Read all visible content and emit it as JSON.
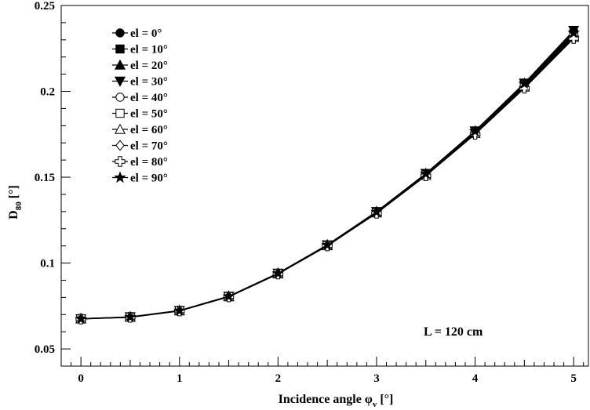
{
  "chart_data": {
    "type": "line",
    "xlabel": "Incidence angle φ",
    "xlabel_sub": "v",
    "xlabel_unit": "[°]",
    "ylabel": "D",
    "ylabel_sub": "80",
    "ylabel_unit": "[°]",
    "xlim": [
      -0.2,
      5.15
    ],
    "ylim": [
      0.04,
      0.25
    ],
    "x_ticks": [
      0,
      1,
      2,
      3,
      4,
      5
    ],
    "x_tick_labels": [
      "0",
      "1",
      "2",
      "3",
      "4",
      "5"
    ],
    "y_ticks": [
      0.05,
      0.1,
      0.15,
      0.2,
      0.25
    ],
    "y_tick_labels": [
      "0.05",
      "0.1",
      "0.15",
      "0.2",
      "0.25"
    ],
    "grid": false,
    "legend_position": "top-left",
    "annotation": "L = 120 cm",
    "x": [
      0,
      0.5,
      1,
      1.5,
      2,
      2.5,
      3,
      3.5,
      4,
      4.5,
      5
    ],
    "series": [
      {
        "name": "el = 0°",
        "marker": "circle-filled",
        "values": [
          0.0675,
          0.0685,
          0.0722,
          0.0805,
          0.0938,
          0.1103,
          0.1295,
          0.1515,
          0.1762,
          0.2035,
          0.2325
        ]
      },
      {
        "name": "el = 10°",
        "marker": "square-filled",
        "values": [
          0.0675,
          0.0686,
          0.0723,
          0.0806,
          0.0939,
          0.1104,
          0.1297,
          0.1518,
          0.1765,
          0.204,
          0.2335
        ]
      },
      {
        "name": "el = 20°",
        "marker": "triangle-up-filled",
        "values": [
          0.0676,
          0.0686,
          0.0723,
          0.0806,
          0.094,
          0.1105,
          0.1298,
          0.152,
          0.1768,
          0.2045,
          0.2345
        ]
      },
      {
        "name": "el = 30°",
        "marker": "triangle-down-filled",
        "values": [
          0.0676,
          0.0687,
          0.0724,
          0.0807,
          0.0941,
          0.1106,
          0.13,
          0.1522,
          0.177,
          0.2048,
          0.2355
        ]
      },
      {
        "name": "el = 40°",
        "marker": "circle-open",
        "values": [
          0.0676,
          0.0686,
          0.0723,
          0.0806,
          0.0939,
          0.1104,
          0.1296,
          0.1518,
          0.1766,
          0.2042,
          0.233
        ]
      },
      {
        "name": "el = 50°",
        "marker": "square-open",
        "values": [
          0.0675,
          0.0685,
          0.0722,
          0.0805,
          0.0938,
          0.1102,
          0.1293,
          0.1513,
          0.1758,
          0.203,
          0.232
        ]
      },
      {
        "name": "el = 60°",
        "marker": "triangle-up-open",
        "values": [
          0.0675,
          0.0685,
          0.0722,
          0.0804,
          0.0937,
          0.1101,
          0.1292,
          0.1511,
          0.1755,
          0.2025,
          0.2315
        ]
      },
      {
        "name": "el = 70°",
        "marker": "diamond-open",
        "values": [
          0.0675,
          0.0685,
          0.0721,
          0.0804,
          0.0937,
          0.11,
          0.1291,
          0.151,
          0.1753,
          0.2022,
          0.2312
        ]
      },
      {
        "name": "el = 80°",
        "marker": "cross-open",
        "values": [
          0.0674,
          0.0684,
          0.0721,
          0.0803,
          0.0936,
          0.11,
          0.129,
          0.1508,
          0.175,
          0.2018,
          0.2308
        ]
      },
      {
        "name": "el = 90°",
        "marker": "star-filled",
        "values": [
          0.0675,
          0.0686,
          0.0723,
          0.0806,
          0.094,
          0.1105,
          0.1298,
          0.152,
          0.1768,
          0.2045,
          0.234
        ]
      }
    ]
  }
}
